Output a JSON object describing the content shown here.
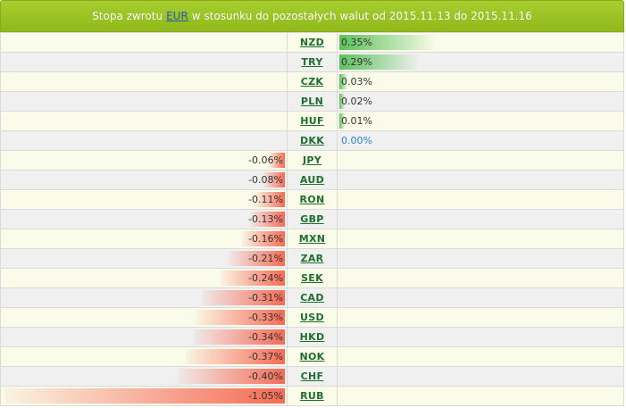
{
  "header": {
    "title_prefix": "Stopa zwrotu",
    "base_currency": "EUR",
    "title_suffix": "w stosunku do pozostałych walut od 2015.11.13 do 2015.11.16"
  },
  "colors": {
    "header_green": "#9bc424",
    "positive_bar": "#5cc15c",
    "negative_bar": "#f56b56",
    "currency_link": "#1e6f2d",
    "zero_value": "#2a80c8"
  },
  "rows": [
    {
      "currency": "NZD",
      "value": 0.35,
      "label": "0.35%"
    },
    {
      "currency": "TRY",
      "value": 0.29,
      "label": "0.29%"
    },
    {
      "currency": "CZK",
      "value": 0.03,
      "label": "0.03%"
    },
    {
      "currency": "PLN",
      "value": 0.02,
      "label": "0.02%"
    },
    {
      "currency": "HUF",
      "value": 0.01,
      "label": "0.01%"
    },
    {
      "currency": "DKK",
      "value": 0.0,
      "label": "0.00%"
    },
    {
      "currency": "JPY",
      "value": -0.06,
      "label": "-0.06%"
    },
    {
      "currency": "AUD",
      "value": -0.08,
      "label": "-0.08%"
    },
    {
      "currency": "RON",
      "value": -0.11,
      "label": "-0.11%"
    },
    {
      "currency": "GBP",
      "value": -0.13,
      "label": "-0.13%"
    },
    {
      "currency": "MXN",
      "value": -0.16,
      "label": "-0.16%"
    },
    {
      "currency": "ZAR",
      "value": -0.21,
      "label": "-0.21%"
    },
    {
      "currency": "SEK",
      "value": -0.24,
      "label": "-0.24%"
    },
    {
      "currency": "CAD",
      "value": -0.31,
      "label": "-0.31%"
    },
    {
      "currency": "USD",
      "value": -0.33,
      "label": "-0.33%"
    },
    {
      "currency": "HKD",
      "value": -0.34,
      "label": "-0.34%"
    },
    {
      "currency": "NOK",
      "value": -0.37,
      "label": "-0.37%"
    },
    {
      "currency": "CHF",
      "value": -0.4,
      "label": "-0.40%"
    },
    {
      "currency": "RUB",
      "value": -1.05,
      "label": "-1.05%"
    }
  ]
}
